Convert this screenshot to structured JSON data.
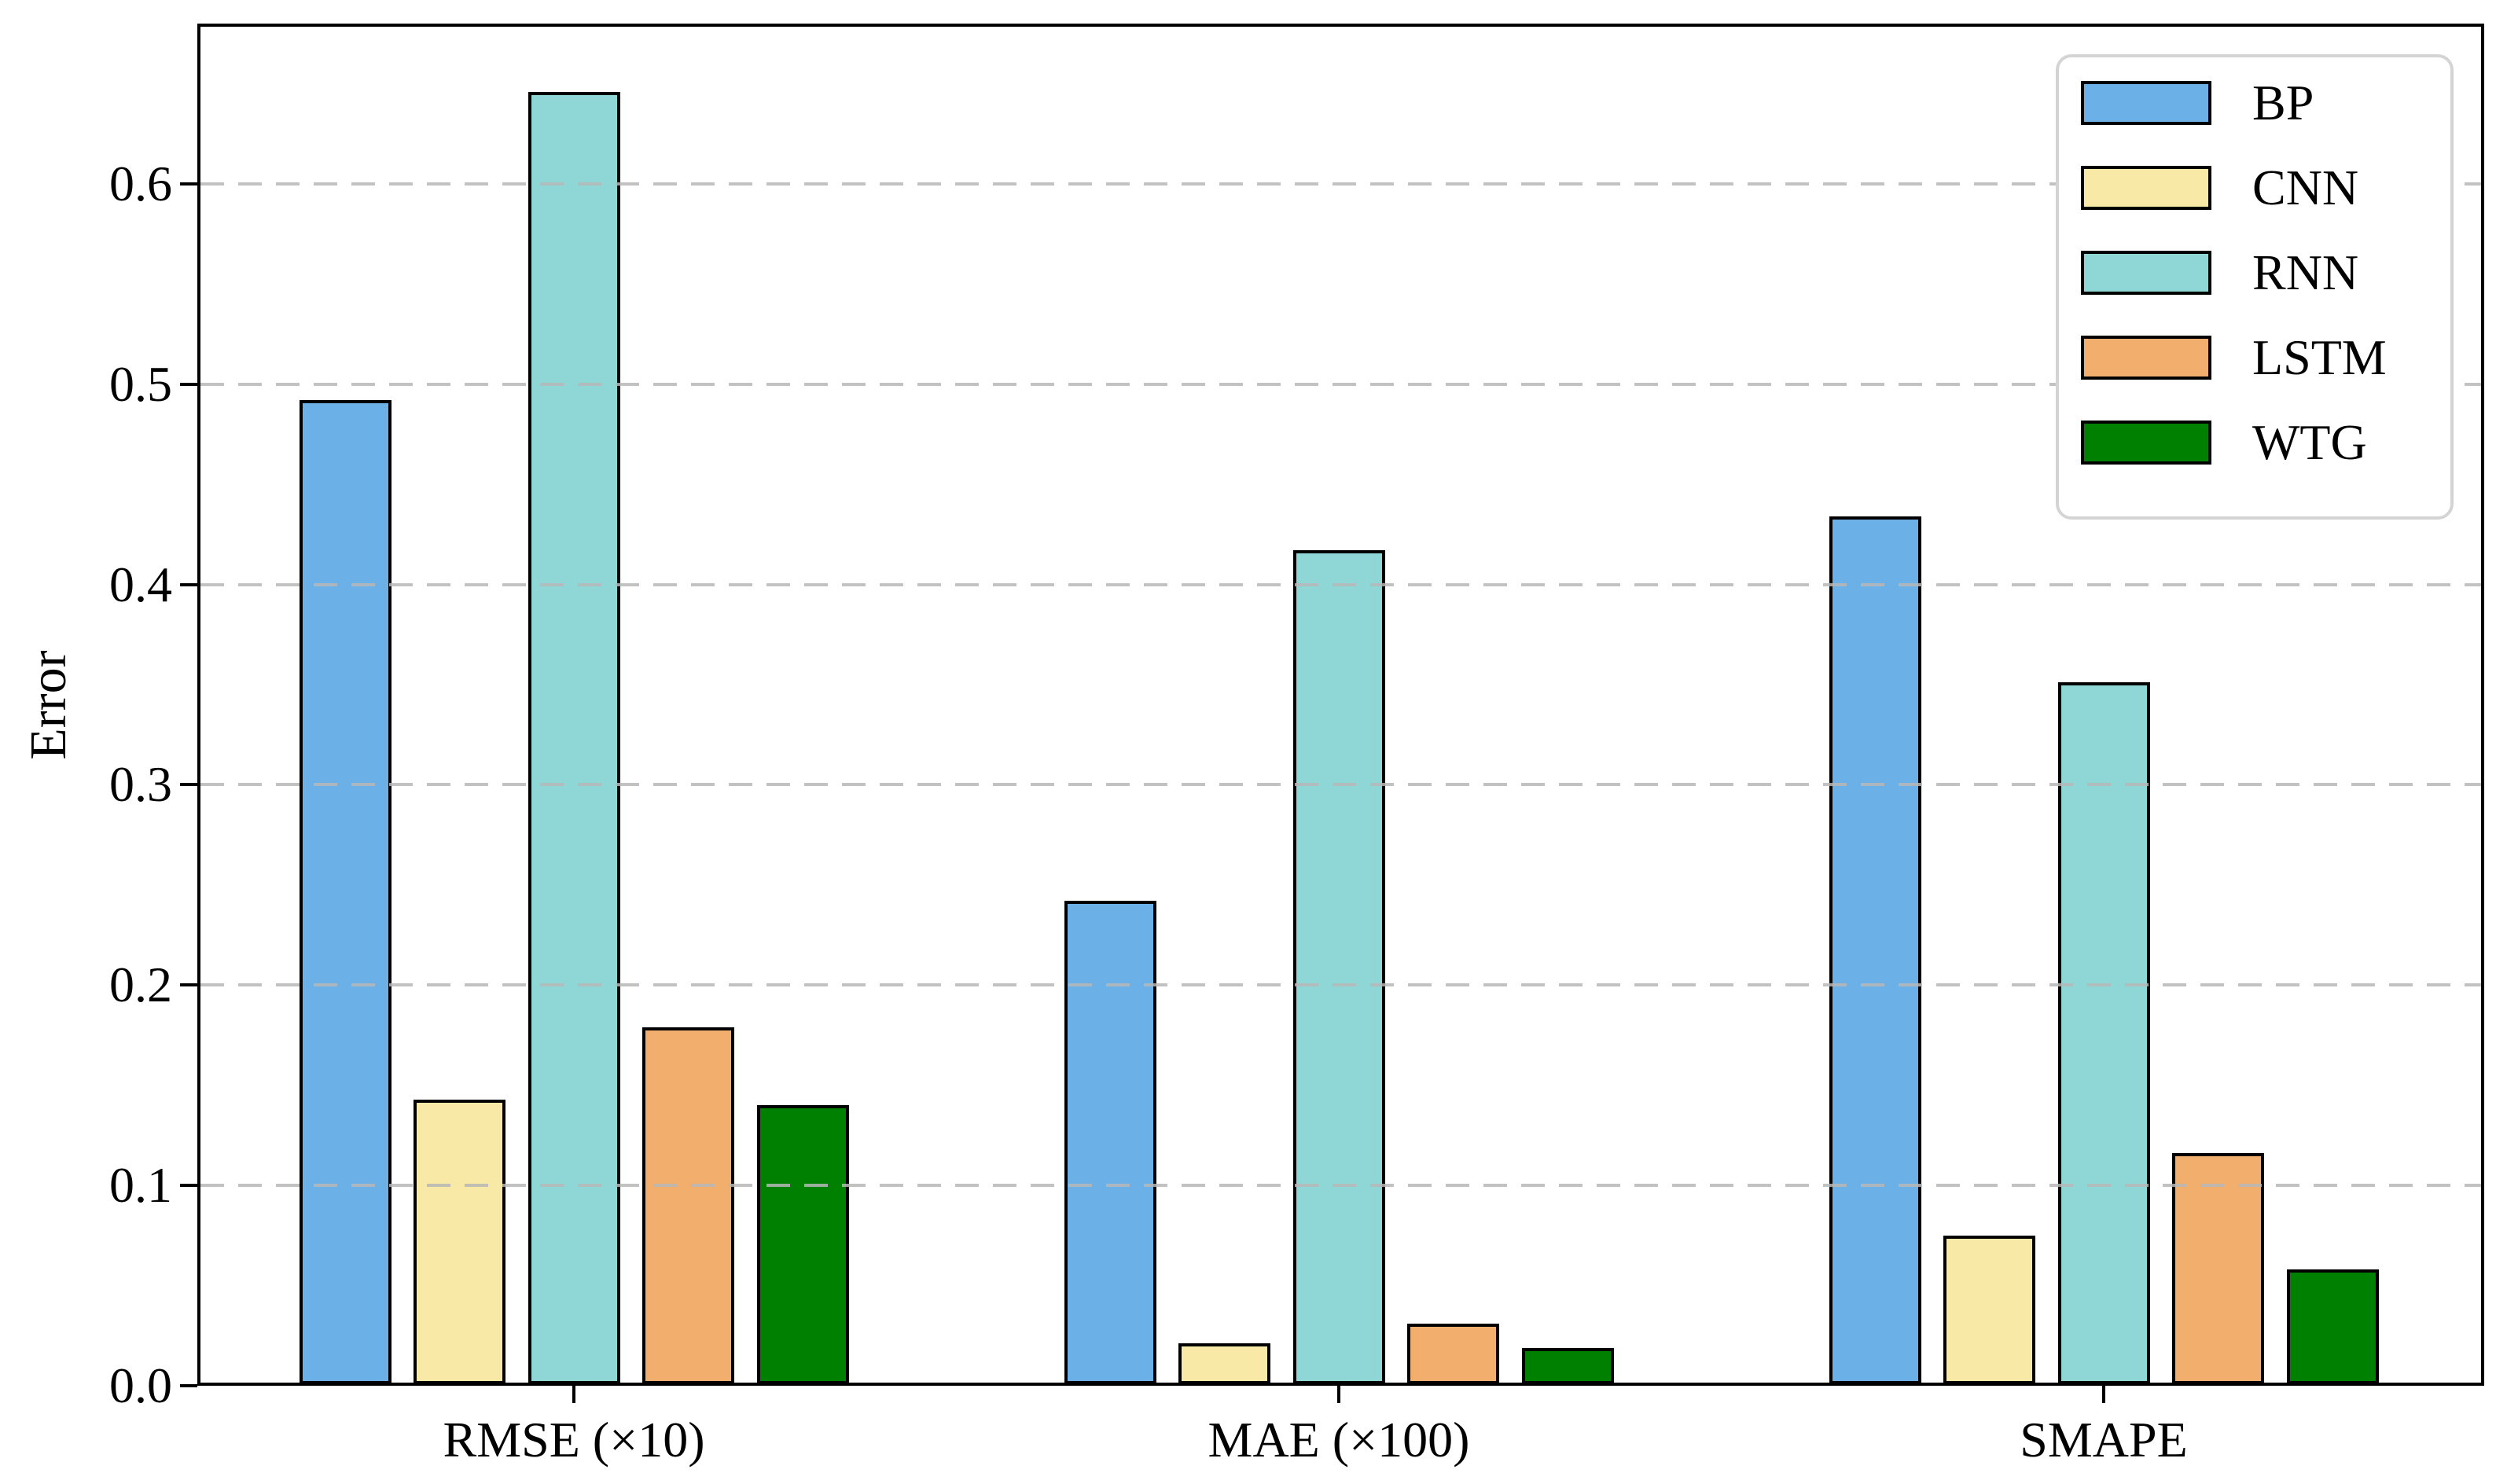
{
  "figure": {
    "background_color": "#ffffff",
    "axis_color": "#000000",
    "gridline_color": "#bdbdbd",
    "bar_edge_color": "#000000"
  },
  "chart_data": {
    "type": "bar",
    "title": "",
    "categories": [
      "RMSE (×10)",
      "MAE (×100)",
      "SMAPE"
    ],
    "series": [
      {
        "name": "BP",
        "color": "#6bb0e6",
        "values": [
          0.492,
          0.242,
          0.434
        ]
      },
      {
        "name": "CNN",
        "color": "#f8e9a6",
        "values": [
          0.143,
          0.021,
          0.075
        ]
      },
      {
        "name": "RNN",
        "color": "#8fd7d6",
        "values": [
          0.646,
          0.417,
          0.351
        ]
      },
      {
        "name": "LSTM",
        "color": "#f1ae6d",
        "values": [
          0.179,
          0.031,
          0.116
        ]
      },
      {
        "name": "WTG",
        "color": "#008000",
        "values": [
          0.14,
          0.019,
          0.058
        ]
      }
    ],
    "xlabel": "",
    "ylabel": "Error",
    "yticks": [
      0.0,
      0.1,
      0.2,
      0.3,
      0.4,
      0.5,
      0.6
    ],
    "ylim": [
      0,
      0.68
    ],
    "grid": "horizontal-dashed",
    "legend_position": "upper-right",
    "legend_entries": [
      "BP",
      "CNN",
      "RNN",
      "LSTM",
      "WTG"
    ]
  }
}
